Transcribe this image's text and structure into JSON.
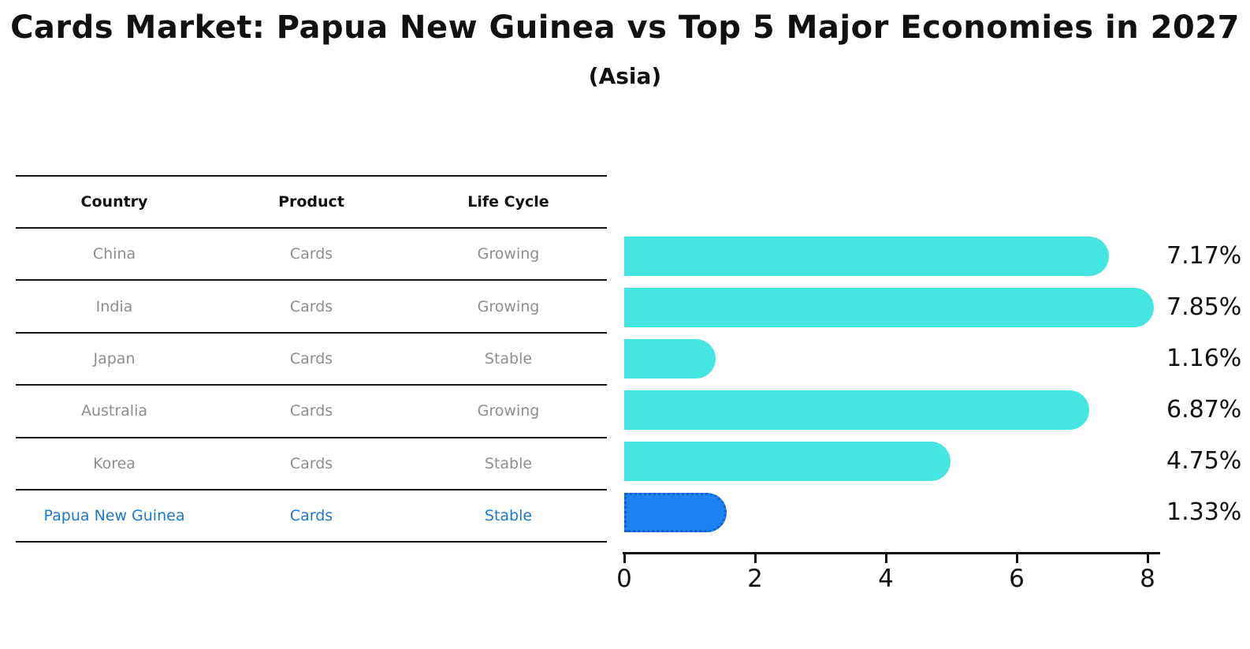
{
  "title": "Cards Market: Papua New Guinea vs Top 5 Major Economies in 2027",
  "subtitle": "(Asia)",
  "colors": {
    "bar_default": "#45e5e0",
    "bar_highlight": "#1e82f0",
    "bar_highlight_border": "#1060d0",
    "table_text": "#8e8e8e",
    "table_header_text": "#111111",
    "highlight_row_text": "#1a78d2",
    "axis": "#111111",
    "background": "#ffffff"
  },
  "table": {
    "headers": [
      "Country",
      "Product",
      "Life Cycle"
    ],
    "rows": [
      {
        "country": "China",
        "product": "Cards",
        "life_cycle": "Growing",
        "highlight": false
      },
      {
        "country": "India",
        "product": "Cards",
        "life_cycle": "Growing",
        "highlight": false
      },
      {
        "country": "Japan",
        "product": "Cards",
        "life_cycle": "Stable",
        "highlight": false
      },
      {
        "country": "Australia",
        "product": "Cards",
        "life_cycle": "Growing",
        "highlight": false
      },
      {
        "country": "Korea",
        "product": "Cards",
        "life_cycle": "Stable",
        "highlight": false
      },
      {
        "country": "Papua New Guinea",
        "product": "Cards",
        "life_cycle": "Stable",
        "highlight": true
      }
    ]
  },
  "chart_data": {
    "type": "bar",
    "orientation": "horizontal",
    "title": "Cards Market: Papua New Guinea vs Top 5 Major Economies in 2027 (Asia)",
    "categories": [
      "China",
      "India",
      "Japan",
      "Australia",
      "Korea",
      "Papua New Guinea"
    ],
    "values": [
      7.17,
      7.85,
      1.16,
      6.87,
      4.75,
      1.33
    ],
    "value_labels": [
      "7.17%",
      "7.85%",
      "1.16%",
      "6.87%",
      "4.75%",
      "1.33%"
    ],
    "highlight_index": 5,
    "xlabel": "",
    "ylabel": "",
    "xlim": [
      0,
      8
    ],
    "xticks": [
      0,
      2,
      4,
      6,
      8
    ],
    "grid": false,
    "legend": false
  }
}
